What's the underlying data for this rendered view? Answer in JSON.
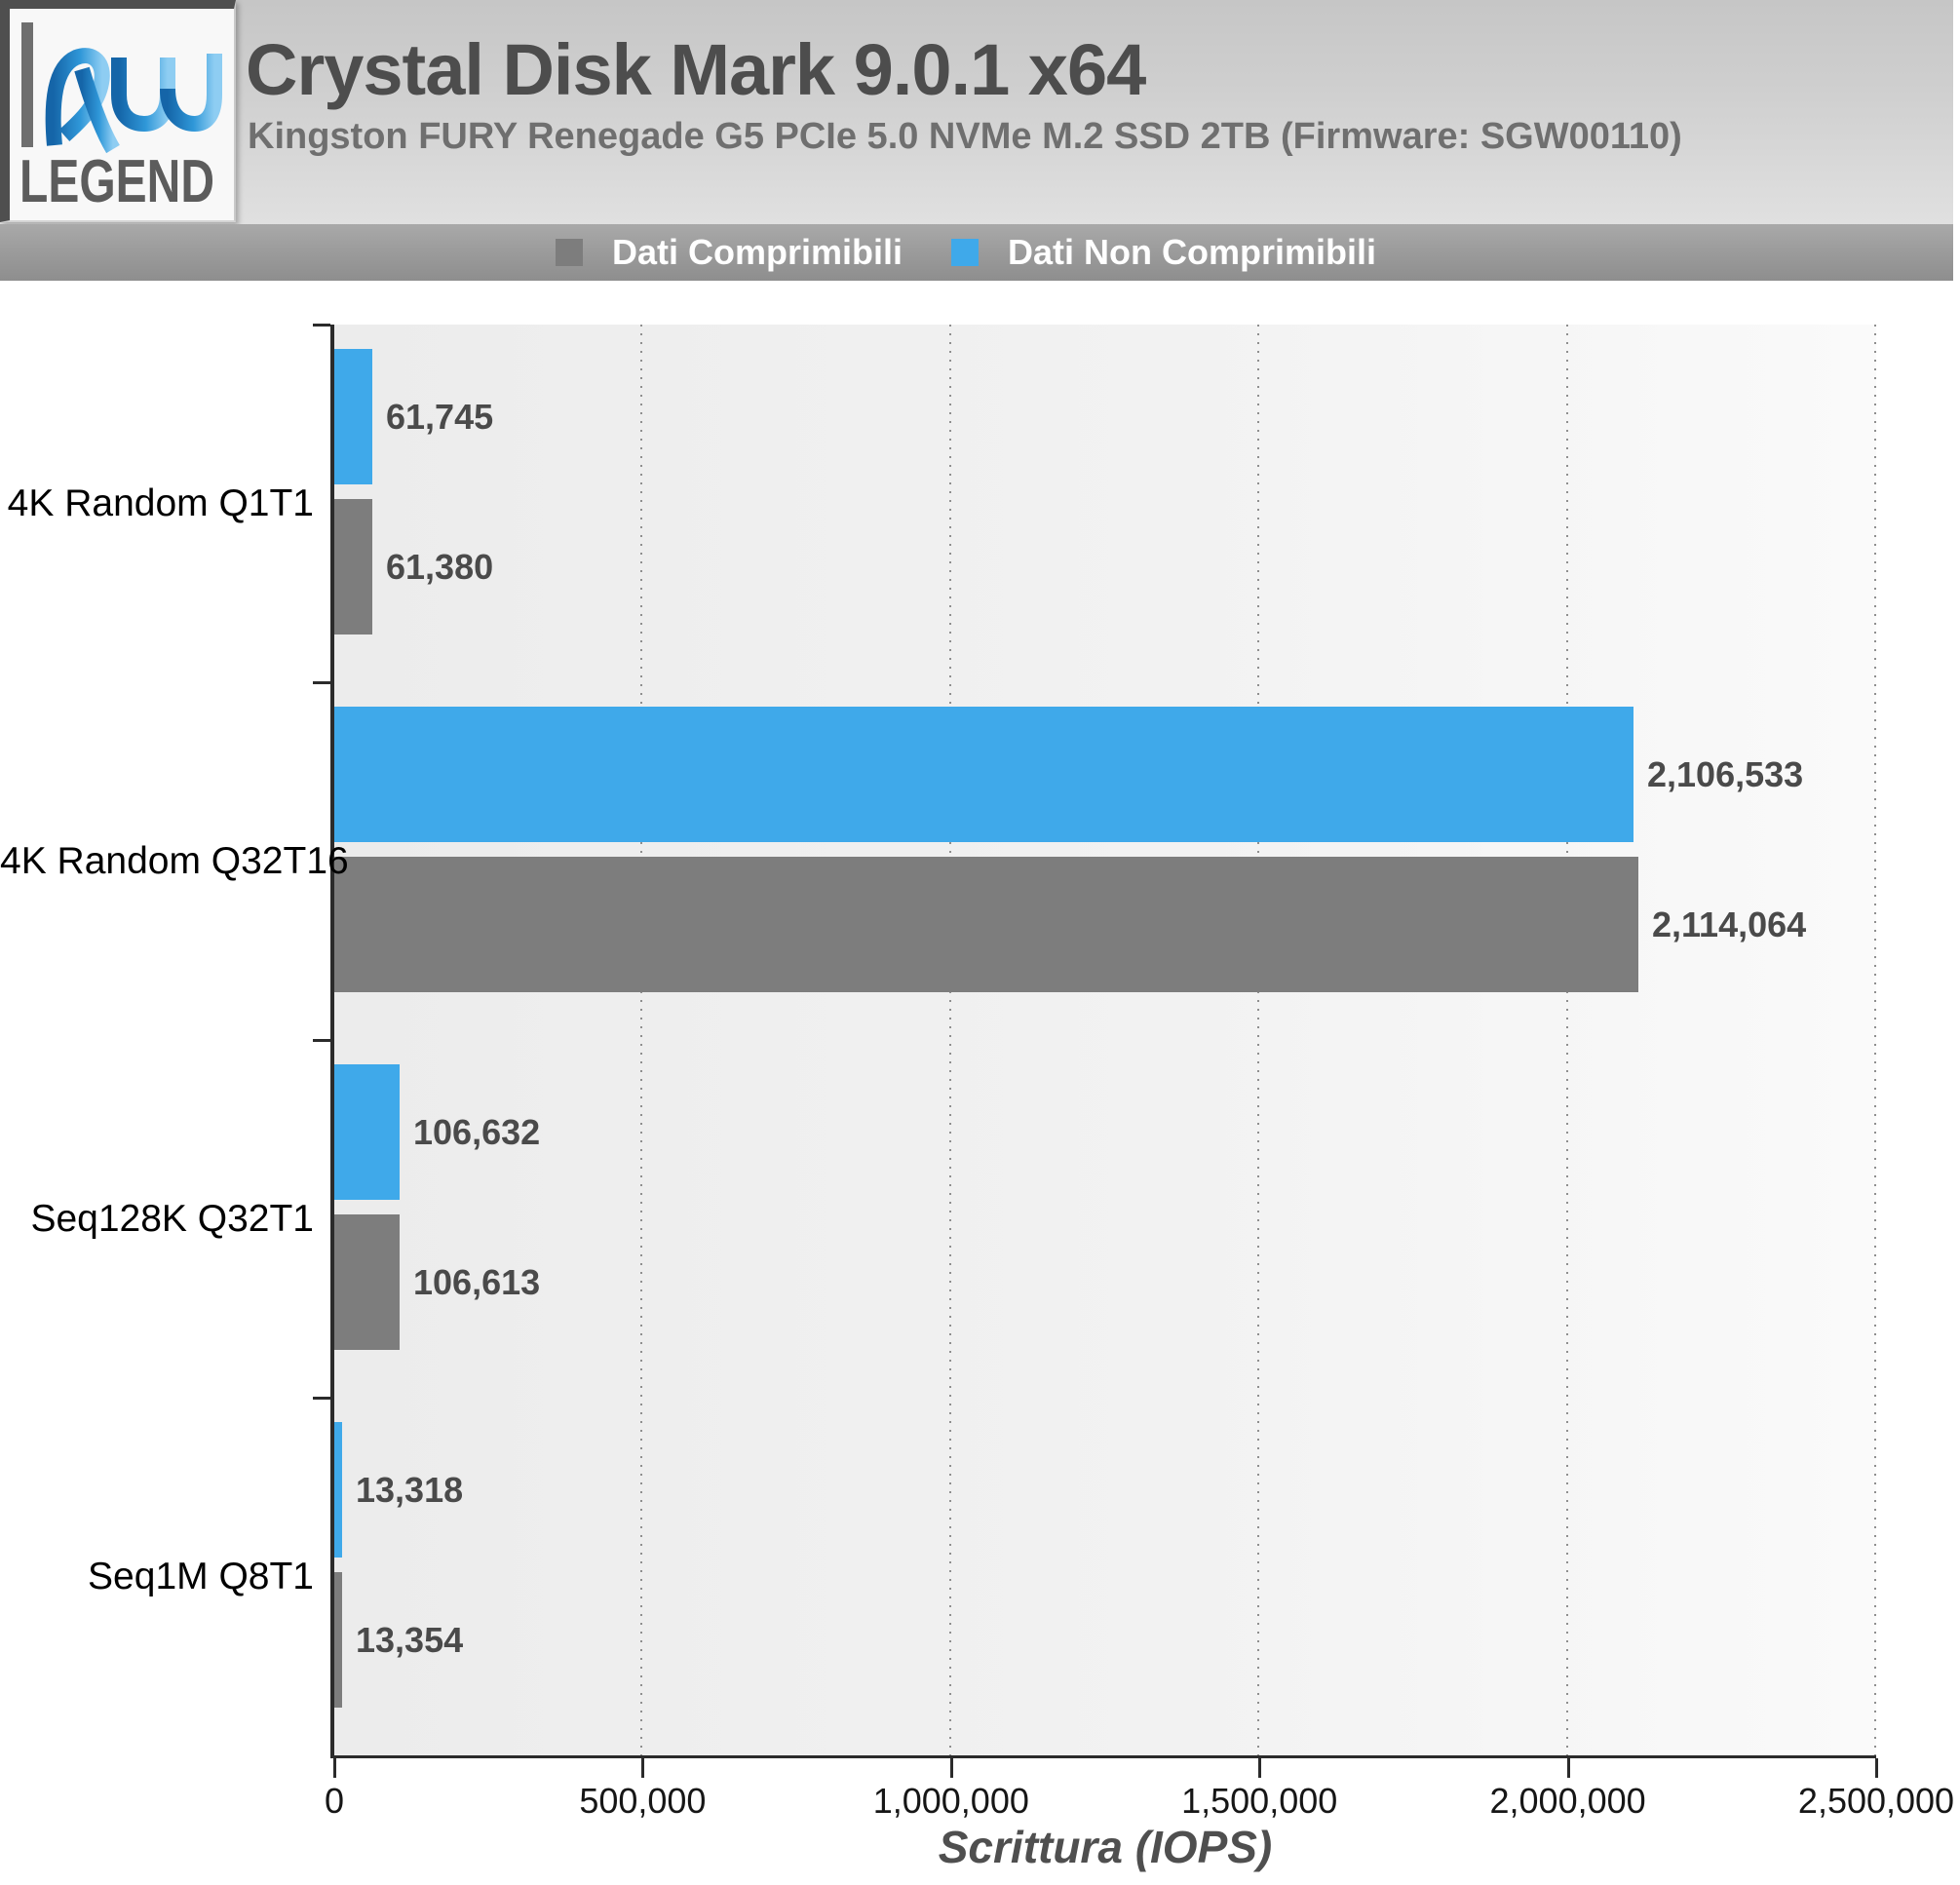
{
  "header": {
    "title": "Crystal Disk Mark 9.0.1 x64",
    "subtitle": "Kingston FURY Renegade G5 PCIe 5.0 NVMe M.2 SSD 2TB (Firmware: SGW00110)",
    "logo": {
      "monogram": "hw",
      "wordmark": "LEGEND"
    }
  },
  "legend": {
    "items": [
      {
        "label": "Dati Comprimibili",
        "color": "#7d7d7d"
      },
      {
        "label": "Dati Non Comprimibili",
        "color": "#3fa9ea"
      }
    ]
  },
  "chart_data": {
    "type": "bar",
    "orientation": "horizontal",
    "title": "Crystal Disk Mark 9.0.1 x64",
    "subtitle": "Kingston FURY Renegade G5 PCIe 5.0 NVMe M.2 SSD 2TB (Firmware: SGW00110)",
    "categories": [
      "4K Random Q1T1",
      "4K Random Q32T16",
      "Seq128K Q32T1",
      "Seq1M Q8T1"
    ],
    "series": [
      {
        "name": "Dati Non Comprimibili",
        "color": "#3fa9ea",
        "values": [
          61745,
          2106533,
          106632,
          13318
        ]
      },
      {
        "name": "Dati Comprimibili",
        "color": "#7d7d7d",
        "values": [
          61380,
          2114064,
          106613,
          13354
        ]
      }
    ],
    "bar_order_top_to_bottom": [
      "Dati Non Comprimibili",
      "Dati Comprimibili"
    ],
    "xlabel": "Scrittura (IOPS)",
    "xlim": [
      0,
      2500000
    ],
    "xtick_labels": [
      "0",
      "500,000",
      "1,000,000",
      "1,500,000",
      "2,000,000",
      "2,500,000"
    ],
    "grid": "dotted-vertical",
    "legend_position": "top",
    "gridline_color": "#8f8f8f"
  }
}
